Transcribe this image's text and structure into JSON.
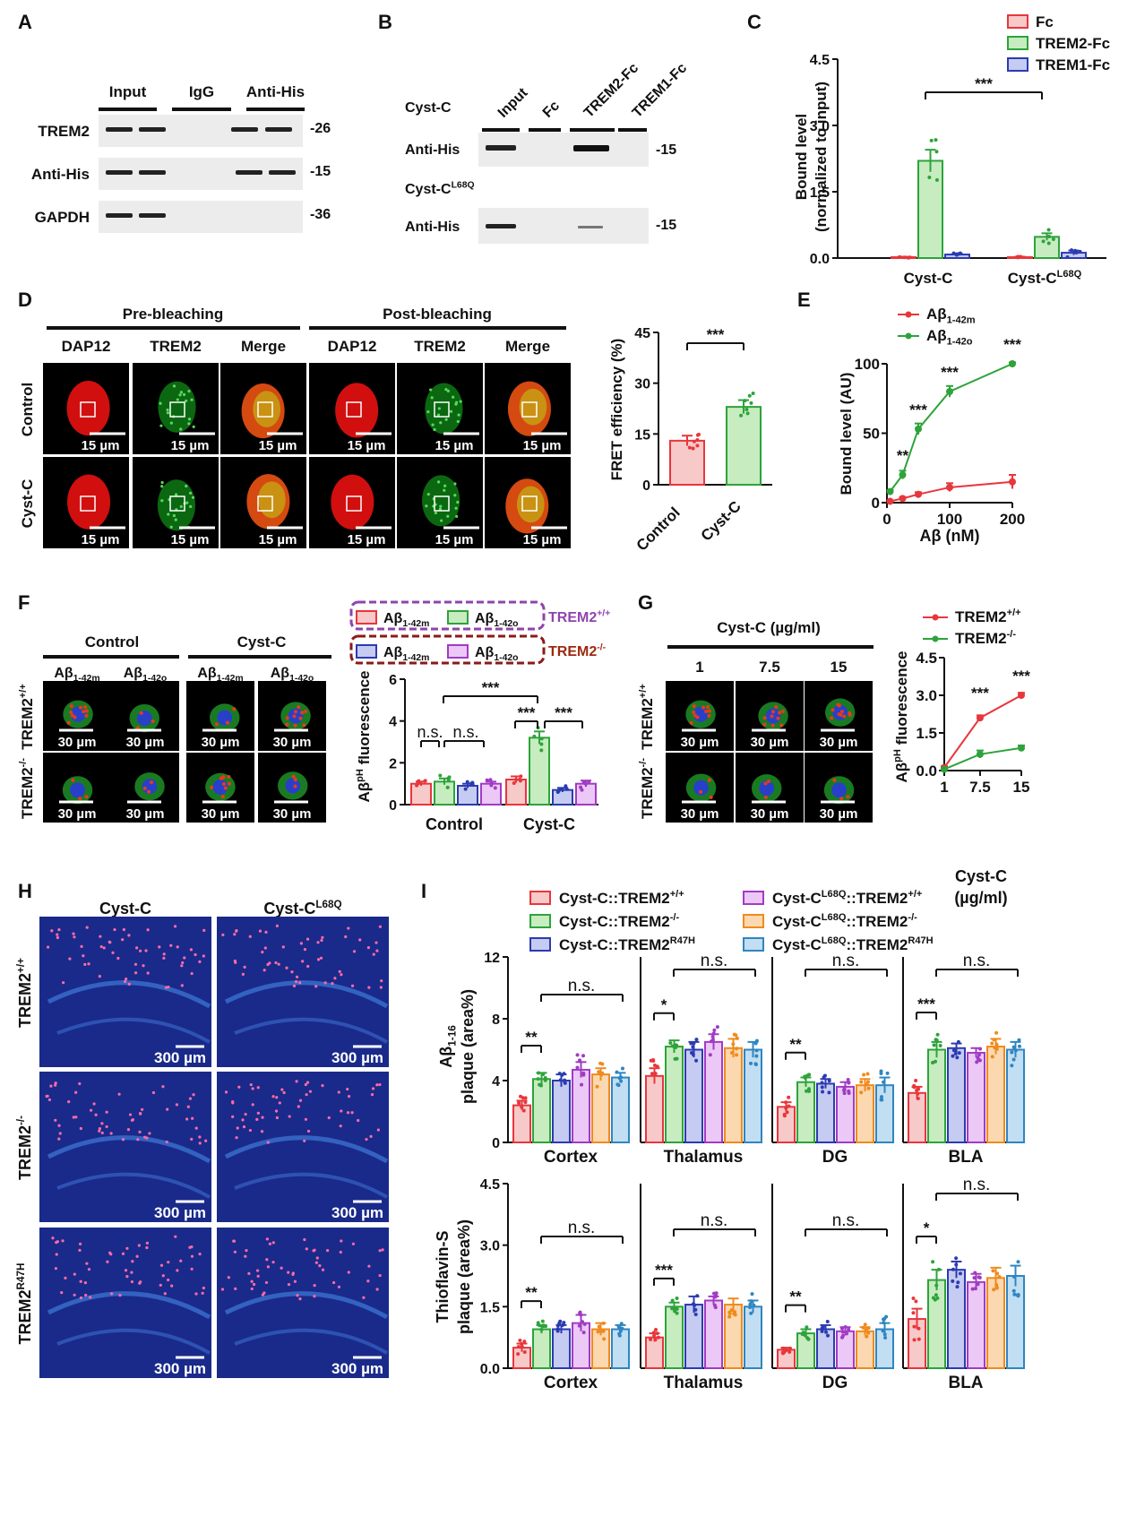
{
  "colors": {
    "red": "#e8363b",
    "red_fill": "#f7c9c9",
    "green": "#2ea33a",
    "green_fill": "#c6ecc0",
    "blue": "#2b3bb0",
    "blue_fill": "#c6cbf2",
    "purple": "#a13bc4",
    "purple_fill": "#ebc8f5",
    "orange": "#f08a1d",
    "orange_fill": "#fbd8b0",
    "teal": "#2e86c1",
    "teal_fill": "#c2def2",
    "dash_purple": "#8e44ad",
    "dash_brown": "#8b1a1a",
    "text_purple": "#8e44ad",
    "text_brown": "#9c2a10"
  },
  "panels": {
    "A": {
      "letter": "A",
      "groups": [
        "Input",
        "IgG",
        "Anti-His"
      ],
      "rows": [
        "TREM2",
        "Anti-His",
        "GAPDH"
      ],
      "markers": [
        "-26",
        "-15",
        "-36"
      ]
    },
    "B": {
      "letter": "B",
      "lanes": [
        "Input",
        "Fc",
        "TREM2-Fc",
        "TREM1-Fc"
      ],
      "row_title_1": "Cyst-C",
      "row_title_2_main": "Cyst-C",
      "row_title_2_sup": "L68Q",
      "row_label": "Anti-His",
      "markers": [
        "-15",
        "-15"
      ]
    },
    "D": {
      "letter": "D",
      "headers": [
        "Pre-bleaching",
        "Post-bleaching"
      ],
      "cols": [
        "DAP12",
        "TREM2",
        "Merge",
        "DAP12",
        "TREM2",
        "Merge"
      ],
      "rows": [
        "Control",
        "Cyst-C"
      ],
      "scale": "15 µm"
    },
    "F": {
      "letter": "F",
      "headers": [
        "Control",
        "Cyst-C"
      ],
      "rows_main": [
        "TREM2",
        "TREM2"
      ],
      "rows_sup": [
        "+/+",
        "-/-"
      ],
      "scale": "30 µm"
    },
    "G": {
      "letter": "G",
      "header": "Cyst-C (µg/ml)",
      "cols": [
        "1",
        "7.5",
        "15"
      ],
      "rows_main": [
        "TREM2",
        "TREM2"
      ],
      "rows_sup": [
        "+/+",
        "-/-"
      ],
      "scale": "30 µm"
    },
    "H": {
      "letter": "H",
      "cols_main": [
        "Cyst-C",
        "Cyst-C"
      ],
      "cols_sup": [
        "",
        "L68Q"
      ],
      "rows_main": [
        "TREM2",
        "TREM2",
        "TREM2"
      ],
      "rows_sup": [
        "+/+",
        "-/-",
        "R47H"
      ],
      "scale": "300 µm"
    },
    "I": {
      "letter": "I"
    }
  },
  "chart_data": [
    {
      "id": "C",
      "type": "bar",
      "letter": "C",
      "categories": [
        "Cyst-C",
        "Cyst-C"
      ],
      "category_sups": [
        "",
        "L68Q"
      ],
      "series": [
        {
          "name": "Fc",
          "values": [
            0.02,
            0.02
          ]
        },
        {
          "name": "TREM2-Fc",
          "values": [
            2.2,
            0.48
          ]
        },
        {
          "name": "TREM1-Fc",
          "values": [
            0.08,
            0.12
          ]
        }
      ],
      "errors": [
        [
          0.01,
          0.01
        ],
        [
          0.25,
          0.08
        ],
        [
          0.02,
          0.05
        ]
      ],
      "ylabel": "Bound level",
      "ylabel2": "(normalized to input)",
      "ylim": [
        0,
        4.5
      ],
      "yticks": [
        "0.0",
        "1.5",
        "3.0",
        "4.5"
      ],
      "significance": "***",
      "legend_position": "top-right"
    },
    {
      "id": "D_chart",
      "type": "bar",
      "categories": [
        "Control",
        "Cyst-C"
      ],
      "values": [
        13,
        23
      ],
      "errors": [
        1.5,
        2
      ],
      "ylabel": "FRET efficiency (%)",
      "ylim": [
        0,
        45
      ],
      "yticks": [
        "0",
        "15",
        "30",
        "45"
      ],
      "significance": "***"
    },
    {
      "id": "E",
      "type": "line",
      "letter": "E",
      "x": [
        5,
        25,
        50,
        100,
        200
      ],
      "series": [
        {
          "name_main": "Aβ",
          "name_sub": "1-42m",
          "values": [
            1,
            3,
            6,
            11,
            15
          ],
          "errors": [
            0.5,
            1,
            1.5,
            3,
            5
          ]
        },
        {
          "name_main": "Aβ",
          "name_sub": "1-42o",
          "values": [
            8,
            20,
            53,
            80,
            100
          ],
          "errors": [
            1,
            3,
            4,
            4,
            1
          ]
        }
      ],
      "sig_labels": [
        "**",
        "***",
        "***",
        "***"
      ],
      "ylabel": "Bound level (AU)",
      "xlabel": "Aβ (nM)",
      "xticks": [
        "0",
        "100",
        "200"
      ],
      "yticks": [
        "0",
        "50",
        "100"
      ],
      "ylim": [
        0,
        100
      ],
      "xlim": [
        0,
        200
      ]
    },
    {
      "id": "F_chart",
      "type": "bar",
      "categories": [
        "Control",
        "Cyst-C"
      ],
      "legend_items": [
        "1-42m",
        "1-42o",
        "1-42m",
        "1-42o"
      ],
      "legend_group_labels": [
        "TREM2",
        "TREM2"
      ],
      "legend_group_sups": [
        "+/+",
        "-/-"
      ],
      "series": [
        {
          "values": [
            1.0,
            1.2
          ]
        },
        {
          "values": [
            1.1,
            3.2
          ]
        },
        {
          "values": [
            0.9,
            0.7
          ]
        },
        {
          "values": [
            1.0,
            1.0
          ]
        }
      ],
      "errors": [
        [
          0.1,
          0.15
        ],
        [
          0.15,
          0.3
        ],
        [
          0.1,
          0.1
        ],
        [
          0.1,
          0.15
        ]
      ],
      "ylabel_main": "Aβ",
      "ylabel_sup": "pH",
      "ylabel_rest": " fluorescence",
      "ylim": [
        0,
        6
      ],
      "yticks": [
        "0",
        "2",
        "4",
        "6"
      ],
      "annotations": [
        "n.s.",
        "n.s.",
        "***",
        "***",
        "***"
      ]
    },
    {
      "id": "G_chart",
      "type": "line",
      "x": [
        1,
        7.5,
        15
      ],
      "series": [
        {
          "name": "TREM2",
          "name_sup": "+/+",
          "values": [
            0.12,
            2.1,
            3.0
          ],
          "errors": [
            0.05,
            0.1,
            0.1
          ]
        },
        {
          "name": "TREM2",
          "name_sup": "-/-",
          "values": [
            0.05,
            0.65,
            0.9
          ],
          "errors": [
            0.05,
            0.15,
            0.1
          ]
        }
      ],
      "sig_labels": [
        "***",
        "***"
      ],
      "ylabel_main": "Aβ",
      "ylabel_sup": "pH",
      "ylabel_rest": " fluorescence",
      "xlabel": "Cyst-C",
      "xlabel2": "(µg/ml)",
      "xticks": [
        "1",
        "7.5",
        "15"
      ],
      "yticks": [
        "0.0",
        "1.5",
        "3.0",
        "4.5"
      ],
      "ylim": [
        0,
        4.5
      ]
    },
    {
      "id": "I_top",
      "type": "bar",
      "legend": [
        {
          "main": "Cyst-C::TREM2",
          "sup": "+/+"
        },
        {
          "main": "Cyst-C::TREM2",
          "sup": "-/-"
        },
        {
          "main": "Cyst-C::TREM2",
          "sup": "R47H"
        },
        {
          "main": "Cyst-C",
          "sup": "L68Q",
          "main2": "::TREM2",
          "sup2": "+/+"
        },
        {
          "main": "Cyst-C",
          "sup": "L68Q",
          "main2": "::TREM2",
          "sup2": "-/-"
        },
        {
          "main": "Cyst-C",
          "sup": "L68Q",
          "main2": "::TREM2",
          "sup2": "R47H"
        }
      ],
      "regions": [
        "Cortex",
        "Thalamus",
        "DG",
        "BLA"
      ],
      "values": [
        [
          2.4,
          4.1,
          4.0,
          4.7,
          4.4,
          4.2
        ],
        [
          4.3,
          6.2,
          6.0,
          6.5,
          6.1,
          6.0
        ],
        [
          2.3,
          3.9,
          3.8,
          3.6,
          3.7,
          3.7
        ],
        [
          3.2,
          6.0,
          6.1,
          5.8,
          6.2,
          6.0
        ]
      ],
      "errors": [
        [
          0.3,
          0.4,
          0.4,
          0.5,
          0.4,
          0.3
        ],
        [
          0.5,
          0.4,
          0.5,
          0.5,
          0.6,
          0.5
        ],
        [
          0.3,
          0.3,
          0.3,
          0.3,
          0.4,
          0.5
        ],
        [
          0.4,
          0.5,
          0.3,
          0.3,
          0.5,
          0.5
        ]
      ],
      "ylabel_main": "Aβ",
      "ylabel_sub": "1-16",
      "ylabel2": "plaque (area%)",
      "ylim": [
        0,
        12
      ],
      "yticks": [
        "0",
        "4",
        "8",
        "12"
      ],
      "sig": [
        "**",
        "*",
        "**",
        "***"
      ],
      "ns": [
        "n.s.",
        "n.s.",
        "n.s.",
        "n.s."
      ]
    },
    {
      "id": "I_bottom",
      "type": "bar",
      "regions": [
        "Cortex",
        "Thalamus",
        "DG",
        "BLA"
      ],
      "values": [
        [
          0.5,
          0.95,
          0.95,
          1.1,
          0.95,
          0.95
        ],
        [
          0.75,
          1.5,
          1.55,
          1.65,
          1.55,
          1.5
        ],
        [
          0.45,
          0.85,
          0.95,
          0.9,
          0.9,
          0.95
        ],
        [
          1.2,
          2.15,
          2.4,
          2.1,
          2.2,
          2.25
        ]
      ],
      "errors": [
        [
          0.1,
          0.1,
          0.1,
          0.2,
          0.15,
          0.1
        ],
        [
          0.1,
          0.1,
          0.2,
          0.1,
          0.15,
          0.15
        ],
        [
          0.05,
          0.1,
          0.1,
          0.1,
          0.1,
          0.15
        ],
        [
          0.25,
          0.25,
          0.2,
          0.2,
          0.25,
          0.25
        ]
      ],
      "ylabel": "Thioflavin-S",
      "ylabel2": "plaque (area%)",
      "ylim": [
        0,
        4.5
      ],
      "yticks": [
        "0.0",
        "1.5",
        "3.0",
        "4.5"
      ],
      "sig": [
        "**",
        "***",
        "**",
        "*"
      ],
      "ns": [
        "n.s.",
        "n.s.",
        "n.s.",
        "n.s."
      ]
    }
  ]
}
